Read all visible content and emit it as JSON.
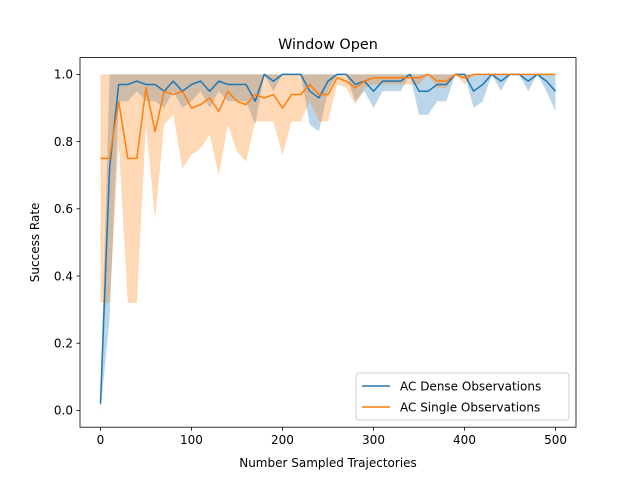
{
  "chart_data": {
    "type": "line",
    "title": "Window Open",
    "xlabel": "Number Sampled Trajectories",
    "ylabel": "Success Rate",
    "xlim": [
      -22.5,
      522.5
    ],
    "ylim": [
      -0.05,
      1.05
    ],
    "xticks": [
      0,
      100,
      200,
      300,
      400,
      500
    ],
    "xtick_labels": [
      "0",
      "100",
      "200",
      "300",
      "400",
      "500"
    ],
    "yticks": [
      0.0,
      0.2,
      0.4,
      0.6,
      0.8,
      1.0
    ],
    "ytick_labels": [
      "0.0",
      "0.2",
      "0.4",
      "0.6",
      "0.8",
      "1.0"
    ],
    "grid": false,
    "legend_position": "lower-right",
    "x": [
      0,
      10,
      20,
      30,
      40,
      50,
      60,
      70,
      80,
      90,
      100,
      110,
      120,
      130,
      140,
      150,
      160,
      170,
      180,
      190,
      200,
      210,
      220,
      230,
      240,
      250,
      260,
      270,
      280,
      290,
      300,
      310,
      320,
      330,
      340,
      350,
      360,
      370,
      380,
      390,
      400,
      410,
      420,
      430,
      440,
      450,
      460,
      470,
      480,
      490,
      500
    ],
    "series": [
      {
        "name": "AC Dense Observations",
        "color": "#1f77b4",
        "fill_alpha": 0.3,
        "values": [
          0.02,
          0.72,
          0.97,
          0.97,
          0.98,
          0.97,
          0.97,
          0.95,
          0.98,
          0.95,
          0.97,
          0.98,
          0.95,
          0.98,
          0.97,
          0.97,
          0.97,
          0.92,
          1.0,
          0.98,
          1.0,
          1.0,
          1.0,
          0.95,
          0.93,
          0.98,
          1.0,
          1.0,
          0.97,
          0.98,
          0.95,
          0.98,
          0.98,
          0.98,
          1.0,
          0.95,
          0.95,
          0.97,
          0.97,
          1.0,
          1.0,
          0.95,
          0.97,
          1.0,
          0.98,
          1.0,
          1.0,
          0.98,
          1.0,
          0.98,
          0.95
        ],
        "lower": [
          0.0,
          0.27,
          0.92,
          0.92,
          0.95,
          0.92,
          0.92,
          0.9,
          0.95,
          0.9,
          0.92,
          0.95,
          0.9,
          0.95,
          0.92,
          0.92,
          0.92,
          0.85,
          1.0,
          0.95,
          1.0,
          1.0,
          1.0,
          0.85,
          0.83,
          0.95,
          1.0,
          1.0,
          0.92,
          0.95,
          0.9,
          0.95,
          0.95,
          0.95,
          1.0,
          0.88,
          0.88,
          0.92,
          0.92,
          1.0,
          1.0,
          0.9,
          0.92,
          1.0,
          0.95,
          1.0,
          1.0,
          0.95,
          1.0,
          0.95,
          0.89
        ],
        "upper": [
          0.05,
          1.0,
          1.0,
          1.0,
          1.0,
          1.0,
          1.0,
          1.0,
          1.0,
          1.0,
          1.0,
          1.0,
          1.0,
          1.0,
          1.0,
          1.0,
          1.0,
          1.0,
          1.0,
          1.0,
          1.0,
          1.0,
          1.0,
          1.0,
          1.0,
          1.0,
          1.0,
          1.0,
          1.0,
          1.0,
          1.0,
          1.0,
          1.0,
          1.0,
          1.0,
          1.0,
          1.0,
          1.0,
          1.0,
          1.0,
          1.0,
          1.0,
          1.0,
          1.0,
          1.0,
          1.0,
          1.0,
          1.0,
          1.0,
          1.0,
          1.0
        ]
      },
      {
        "name": "AC Single Observations",
        "color": "#ff7f0e",
        "fill_alpha": 0.3,
        "values": [
          0.75,
          0.75,
          0.92,
          0.75,
          0.75,
          0.96,
          0.83,
          0.95,
          0.94,
          0.95,
          0.9,
          0.91,
          0.93,
          0.89,
          0.95,
          0.92,
          0.91,
          0.94,
          0.93,
          0.94,
          0.9,
          0.94,
          0.94,
          0.97,
          0.94,
          0.94,
          0.99,
          0.98,
          0.96,
          0.98,
          0.99,
          0.99,
          0.99,
          0.99,
          0.99,
          0.99,
          1.0,
          0.98,
          0.98,
          1.0,
          0.99,
          1.0,
          1.0,
          1.0,
          1.0,
          1.0,
          1.0,
          1.0,
          1.0,
          1.0,
          1.0
        ],
        "lower": [
          0.32,
          0.32,
          0.8,
          0.32,
          0.32,
          0.85,
          0.57,
          0.85,
          0.88,
          0.72,
          0.76,
          0.78,
          0.82,
          0.7,
          0.85,
          0.77,
          0.74,
          0.86,
          0.86,
          0.86,
          0.76,
          0.86,
          0.86,
          0.92,
          0.86,
          0.86,
          0.97,
          0.96,
          0.91,
          0.96,
          0.97,
          0.97,
          0.97,
          0.97,
          0.97,
          0.97,
          1.0,
          0.96,
          0.96,
          1.0,
          0.97,
          1.0,
          1.0,
          1.0,
          1.0,
          1.0,
          1.0,
          1.0,
          1.0,
          1.0,
          1.0
        ],
        "upper": [
          1.0,
          1.0,
          1.0,
          1.0,
          1.0,
          1.0,
          1.0,
          1.0,
          1.0,
          1.0,
          1.0,
          1.0,
          1.0,
          1.0,
          1.0,
          1.0,
          1.0,
          1.0,
          1.0,
          1.0,
          1.0,
          1.0,
          1.0,
          1.0,
          1.0,
          1.0,
          1.0,
          1.0,
          1.0,
          1.0,
          1.0,
          1.0,
          1.0,
          1.0,
          1.0,
          1.0,
          1.0,
          1.0,
          1.0,
          1.0,
          1.0,
          1.0,
          1.0,
          1.0,
          1.0,
          1.0,
          1.0,
          1.0,
          1.0,
          1.0,
          1.0
        ]
      }
    ]
  }
}
